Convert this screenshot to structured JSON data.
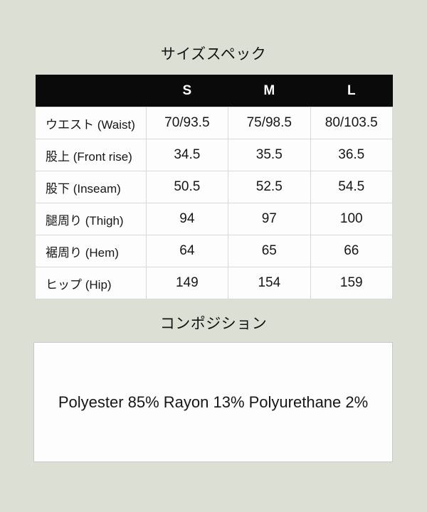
{
  "page": {
    "background_color": "#dce0d4",
    "panel_color": "#fdfdfd"
  },
  "size_section": {
    "title": "サイズスペック",
    "table": {
      "header_bg": "#0a0a0a",
      "header_text_color": "#ffffff",
      "header": [
        "",
        "S",
        "M",
        "L"
      ],
      "rows": [
        {
          "label": "ウエスト (Waist)",
          "s": "70/93.5",
          "m": "75/98.5",
          "l": "80/103.5"
        },
        {
          "label": "股上 (Front rise)",
          "s": "34.5",
          "m": "35.5",
          "l": "36.5"
        },
        {
          "label": "股下 (Inseam)",
          "s": "50.5",
          "m": "52.5",
          "l": "54.5"
        },
        {
          "label": "腿周り (Thigh)",
          "s": "94",
          "m": "97",
          "l": "100"
        },
        {
          "label": "裾周り (Hem)",
          "s": "64",
          "m": "65",
          "l": "66"
        },
        {
          "label": "ヒップ (Hip)",
          "s": "149",
          "m": "154",
          "l": "159"
        }
      ]
    }
  },
  "composition_section": {
    "title": "コンポジション",
    "text": "Polyester 85% Rayon 13% Polyurethane 2%"
  }
}
